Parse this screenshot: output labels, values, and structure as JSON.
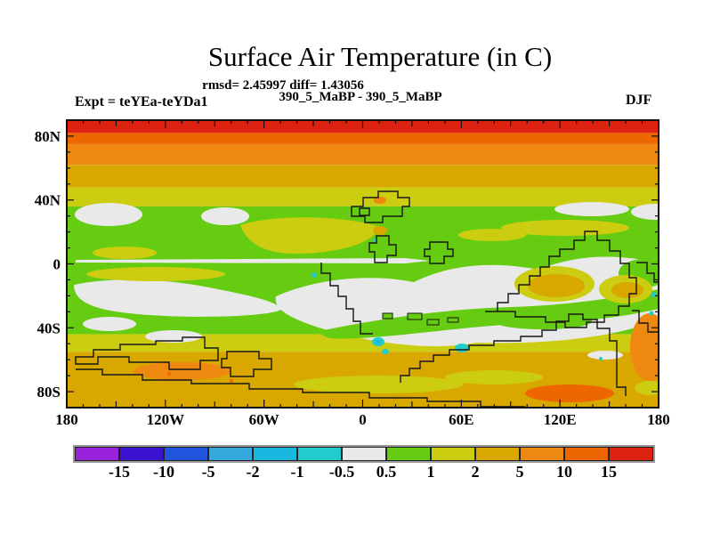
{
  "header": {
    "title": "Surface Air Temperature (in C)",
    "stats_line": "rmsd= 2.45997 diff= 1.43056",
    "run_line": "390_5_MaBP - 390_5_MaBP",
    "expt_label": "Expt = teYEa-teYDa1",
    "season_label": "DJF"
  },
  "chart_data": {
    "type": "heatmap",
    "title": "Surface Air Temperature (in C)",
    "units": "C",
    "season": "DJF",
    "rmsd": 2.45997,
    "diff": 1.43056,
    "experiment_difference": "390_5_MaBP - 390_5_MaBP",
    "expt": "teYEa-teYDa1",
    "x_axis": {
      "minor_step_deg": 10,
      "ticks": [
        {
          "deg": -180,
          "label": "180"
        },
        {
          "deg": -120,
          "label": "120W"
        },
        {
          "deg": -60,
          "label": "60W"
        },
        {
          "deg": 0,
          "label": "0"
        },
        {
          "deg": 60,
          "label": "60E"
        },
        {
          "deg": 120,
          "label": "120E"
        },
        {
          "deg": 180,
          "label": "180"
        }
      ]
    },
    "y_axis": {
      "minor_step_deg": 10,
      "ticks": [
        {
          "deg": 80,
          "label": "80N"
        },
        {
          "deg": 40,
          "label": "40N"
        },
        {
          "deg": 0,
          "label": "0"
        },
        {
          "deg": -40,
          "label": "40S"
        },
        {
          "deg": -80,
          "label": "80S"
        }
      ]
    },
    "colorbar": {
      "levels": [
        -15,
        -10,
        -5,
        -2,
        -1,
        -0.5,
        0.5,
        1,
        2,
        5,
        10,
        15
      ],
      "labels": [
        "-15",
        "-10",
        "-5",
        "-2",
        "-1",
        "-0.5",
        "0.5",
        "1",
        "2",
        "5",
        "10",
        "15"
      ],
      "colors": [
        "#9922dd",
        "#3a12d0",
        "#2255dd",
        "#33a8dd",
        "#18b7e0",
        "#22cccc",
        "#e9e9e9",
        "#66cc11",
        "#cccc11",
        "#d8a800",
        "#ee8811",
        "#ee6600",
        "#dd2211"
      ]
    },
    "zonal_bands": [
      {
        "lat_from": 90,
        "lat_to": 82,
        "color": "#dd2211"
      },
      {
        "lat_from": 82,
        "lat_to": 75,
        "color": "#ee6600"
      },
      {
        "lat_from": 75,
        "lat_to": 62,
        "color": "#ee8811"
      },
      {
        "lat_from": 62,
        "lat_to": 48,
        "color": "#d8a800"
      },
      {
        "lat_from": 48,
        "lat_to": 36,
        "color": "#cccc11"
      },
      {
        "lat_from": 36,
        "lat_to": -44,
        "color": "#66cc11"
      },
      {
        "lat_from": -44,
        "lat_to": -55,
        "color": "#cccc11"
      },
      {
        "lat_from": -55,
        "lat_to": -90,
        "color": "#d8a800"
      }
    ]
  }
}
